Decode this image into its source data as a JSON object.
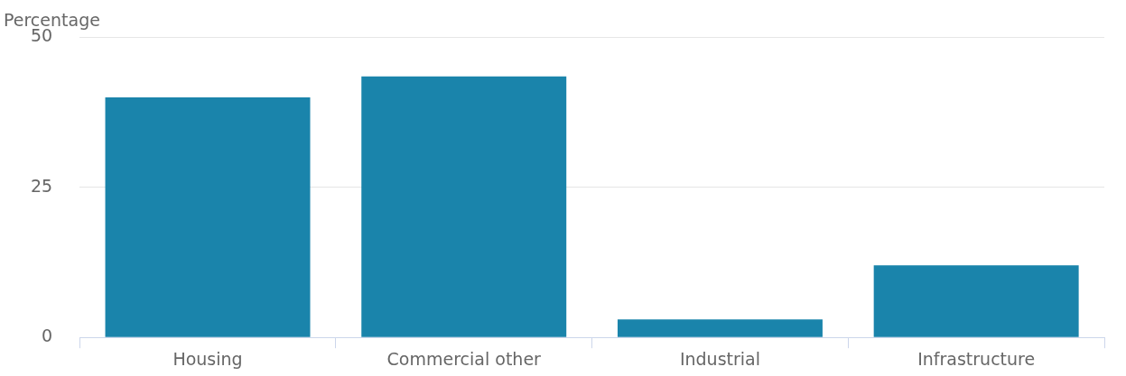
{
  "chart_data": {
    "type": "bar",
    "ylabel": "Percentage",
    "categories": [
      "Housing",
      "Commercial other",
      "Industrial",
      "Infrastructure"
    ],
    "values": [
      40,
      43.5,
      3,
      12
    ],
    "color": "#1a84ab",
    "ylim": [
      0,
      50
    ],
    "yticks": [
      0,
      25,
      50
    ],
    "grid": "y",
    "legend": false
  }
}
